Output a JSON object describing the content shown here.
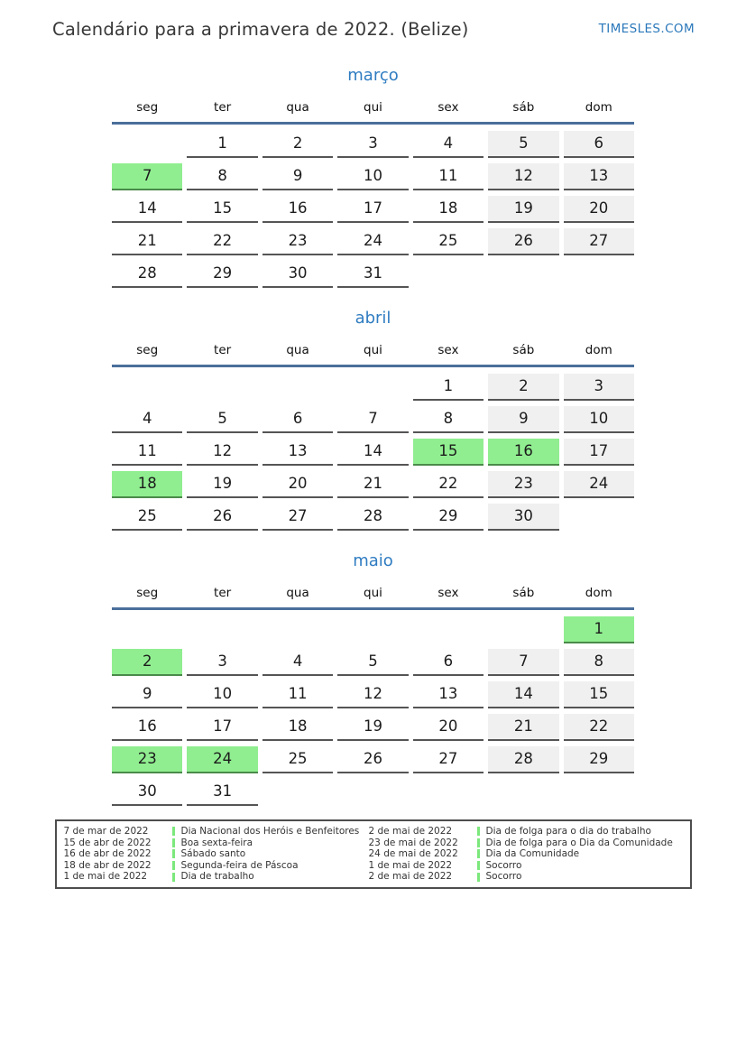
{
  "header": {
    "title": "Calendário para a primavera de 2022. (Belize)",
    "site": "TIMESLES.COM"
  },
  "weekdays": [
    "seg",
    "ter",
    "qua",
    "qui",
    "sex",
    "sáb",
    "dom"
  ],
  "months": [
    {
      "name": "março",
      "highlighted": [
        7
      ],
      "weeks": [
        [
          null,
          1,
          2,
          3,
          4,
          5,
          6
        ],
        [
          7,
          8,
          9,
          10,
          11,
          12,
          13
        ],
        [
          14,
          15,
          16,
          17,
          18,
          19,
          20
        ],
        [
          21,
          22,
          23,
          24,
          25,
          26,
          27
        ],
        [
          28,
          29,
          30,
          31,
          null,
          null,
          null
        ]
      ]
    },
    {
      "name": "abril",
      "highlighted": [
        15,
        16,
        18
      ],
      "weeks": [
        [
          null,
          null,
          null,
          null,
          1,
          2,
          3
        ],
        [
          4,
          5,
          6,
          7,
          8,
          9,
          10
        ],
        [
          11,
          12,
          13,
          14,
          15,
          16,
          17
        ],
        [
          18,
          19,
          20,
          21,
          22,
          23,
          24
        ],
        [
          25,
          26,
          27,
          28,
          29,
          30,
          null
        ]
      ]
    },
    {
      "name": "maio",
      "highlighted": [
        1,
        2,
        23,
        24
      ],
      "weeks": [
        [
          null,
          null,
          null,
          null,
          null,
          null,
          1
        ],
        [
          2,
          3,
          4,
          5,
          6,
          7,
          8
        ],
        [
          9,
          10,
          11,
          12,
          13,
          14,
          15
        ],
        [
          16,
          17,
          18,
          19,
          20,
          21,
          22
        ],
        [
          23,
          24,
          25,
          26,
          27,
          28,
          29
        ],
        [
          30,
          31,
          null,
          null,
          null,
          null,
          null
        ]
      ]
    }
  ],
  "legend": {
    "columns": [
      [
        {
          "date": "7 de mar de 2022",
          "name": "Dia Nacional dos Heróis e Benfeitores"
        },
        {
          "date": "15 de abr de 2022",
          "name": "Boa sexta-feira"
        },
        {
          "date": "16 de abr de 2022",
          "name": "Sábado santo"
        },
        {
          "date": "18 de abr de 2022",
          "name": "Segunda-feira de Páscoa"
        },
        {
          "date": "1 de mai de 2022",
          "name": "Dia de trabalho"
        }
      ],
      [
        {
          "date": "2 de mai de 2022",
          "name": "Dia de folga para o dia do trabalho"
        },
        {
          "date": "23 de mai de 2022",
          "name": "Dia de folga para o Dia da Comunidade"
        },
        {
          "date": "24 de mai de 2022",
          "name": "Dia da Comunidade"
        },
        {
          "date": "1 de mai de 2022",
          "name": "Socorro"
        },
        {
          "date": "2 de mai de 2022",
          "name": "Socorro"
        }
      ]
    ]
  },
  "colors": {
    "accent_blue": "#2f7cc1",
    "header_rule_blue": "#4a6f9b",
    "site_link_blue": "#2a78ba",
    "holiday_green": "#90ee90",
    "holiday_border_green": "#4a8a4a",
    "legend_marker_green": "#7ce87c",
    "weekend_gray": "#f0f0f0",
    "cell_border_gray": "#555555"
  }
}
